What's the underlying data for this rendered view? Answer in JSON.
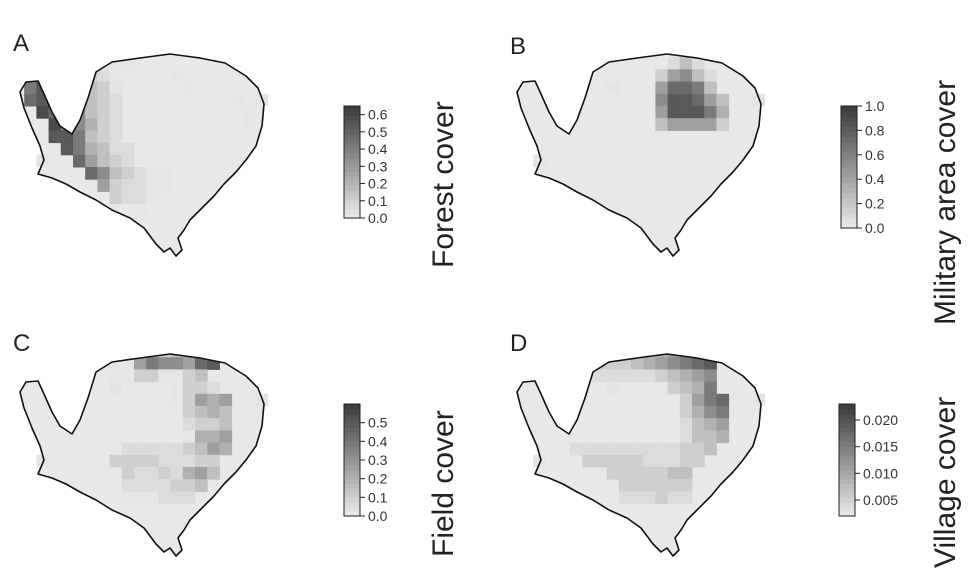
{
  "panels": [
    {
      "id": "A",
      "letter": "A",
      "legend_title": "Forest cover",
      "legend_ticks": [
        "0.6",
        "0.5",
        "0.4",
        "0.3",
        "0.2",
        "0.1",
        "0.0"
      ],
      "legend_range": [
        0.0,
        0.65
      ],
      "grid": [
        "....................",
        ".......aaa..........",
        ".....ccba....a......",
        ".hj..ddcb.....a.....",
        ".ij.fgdcb.........a.",
        "..kiigdcb..........a",
        "...khgecb..........a",
        "...jjhdcb..........",
        "....jhedbb.........",
        ".....ifdcb.........",
        "......igdcbaa.......",
        ".......fcbbaa.......",
        "........cbba........",
        "..........a........."
      ]
    },
    {
      "id": "B",
      "letter": "B",
      "legend_title": "Military area cover",
      "legend_ticks": [
        "1.0",
        "0.8",
        "0.6",
        "0.4",
        "0.2",
        "0.0"
      ],
      "legend_range": [
        0.0,
        1.0
      ],
      "grid": [
        "....................",
        ".............bdb....",
        "............cfgdb...",
        "............fiihd...",
        "............gjjifd..",
        "............fjjjhe..",
        "............dffffc..",
        "....................",
        "....................",
        "....................",
        "....................",
        "....................",
        "....................",
        "...................."
      ]
    },
    {
      "id": "C",
      "letter": "C",
      "legend_title": "Field cover",
      "legend_ticks": [
        "0.5",
        "0.4",
        "0.3",
        "0.2",
        "0.1",
        "0.0"
      ],
      "legend_range": [
        0.0,
        0.6
      ],
      "grid": [
        "..........cdcdcdh...",
        ".......aaafhggfij...",
        ".....a..aaccaacd....",
        ".....a.......accb...",
        ".............acfef..",
        "..............cded..",
        "..............bccd..",
        "..............aeef..",
        ".........bbbbbcdfe..",
        "........ccccbbbcc...",
        ".........cbbcbefd...",
        ".........bbbbccd....",
        ".........aaabbb.....",
        "...................."
      ]
    },
    {
      "id": "D",
      "letter": "D",
      "legend_title": "Village cover",
      "legend_ticks": [
        "0.020",
        "0.015",
        "0.010",
        "0.005"
      ],
      "legend_range": [
        0.002,
        0.023
      ],
      "grid": [
        "..........ddefghj...",
        ".......cccdefghij...",
        ".....bbbbbbbcdefg...",
        ".....b.......cdeh...",
        "..............cfhi..",
        "..............cegh..",
        "..............bdef..",
        "..............bdde..",
        ".....bbbbbbbbbccd...",
        "......cccccbbbcc....",
        "........cccccdd.....",
        ".........cccccc.....",
        ".........bbbcbb.....",
        "...................."
      ]
    }
  ]
}
